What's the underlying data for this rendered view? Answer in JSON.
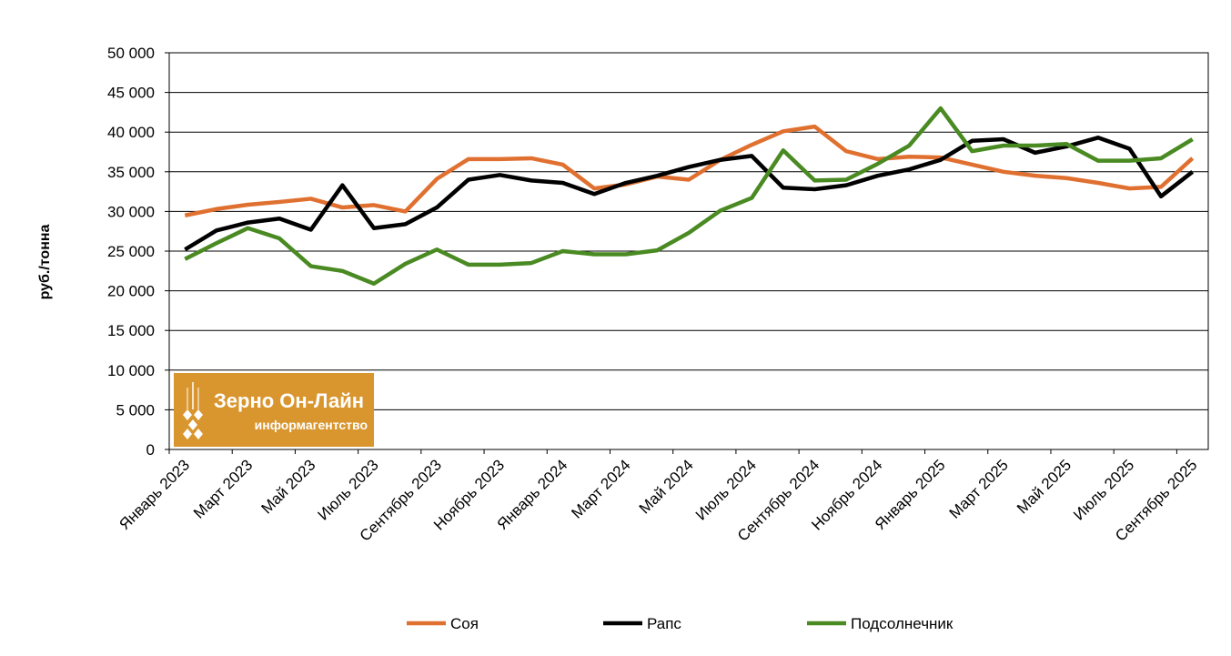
{
  "chart_data": {
    "type": "line",
    "ylabel": "руб./тонна",
    "ylim": [
      0,
      50000
    ],
    "yticks": [
      "0",
      "5 000",
      "10 000",
      "15 000",
      "20 000",
      "25 000",
      "30 000",
      "35 000",
      "40 000",
      "45 000",
      "50 000"
    ],
    "ytick_values": [
      0,
      5000,
      10000,
      15000,
      20000,
      25000,
      30000,
      35000,
      40000,
      45000,
      50000
    ],
    "grid": true,
    "legend": "bottom",
    "categories": [
      "Январь 2023",
      "Февраль 2023",
      "Март 2023",
      "Апрель 2023",
      "Май 2023",
      "Июнь 2023",
      "Июль 2023",
      "Август 2023",
      "Сентябрь 2023",
      "Октябрь 2023",
      "Ноябрь 2023",
      "Декабрь 2023",
      "Январь 2024",
      "Февраль 2024",
      "Март 2024",
      "Апрель 2024",
      "Май 2024",
      "Июнь 2024",
      "Июль 2024",
      "Август 2024",
      "Сентябрь 2024",
      "Октябрь 2024",
      "Ноябрь 2024",
      "Декабрь 2024",
      "Январь 2025",
      "Февраль 2025",
      "Март 2025",
      "Апрель 2025",
      "Май 2025",
      "Июнь 2025",
      "Июль 2025",
      "Август 2025",
      "Сентябрь 2025"
    ],
    "tick_labels": [
      "Январь 2023",
      "Март 2023",
      "Май 2023",
      "Июль 2023",
      "Сентябрь 2023",
      "Ноябрь 2023",
      "Январь 2024",
      "Март 2024",
      "Май 2024",
      "Июль 2024",
      "Сентябрь 2024",
      "Ноябрь 2024",
      "Январь 2025",
      "Март 2025",
      "Май 2025",
      "Июль 2025",
      "Сентябрь 2025"
    ],
    "series": [
      {
        "name": "Соя",
        "color": "#E07030",
        "values": [
          29500,
          30300,
          30850,
          31200,
          31600,
          30500,
          30800,
          30000,
          34100,
          36600,
          36600,
          36700,
          35900,
          32900,
          33400,
          34400,
          34000,
          36500,
          38400,
          40100,
          40700,
          37600,
          36600,
          36900,
          36800,
          35900,
          35000,
          34500,
          34200,
          33600,
          32900,
          33100,
          36700
        ]
      },
      {
        "name": "Рапс",
        "color": "#000000",
        "values": [
          25200,
          27600,
          28600,
          29100,
          27700,
          33300,
          27900,
          28400,
          30500,
          34000,
          34600,
          33900,
          33600,
          32200,
          33600,
          34500,
          35600,
          36500,
          37000,
          33000,
          32800,
          33300,
          34500,
          35300,
          36500,
          38900,
          39100,
          37400,
          38200,
          39300,
          37900,
          31900,
          35000
        ]
      },
      {
        "name": "Подсолнечник",
        "color": "#4A8A22",
        "values": [
          24000,
          26000,
          27900,
          26600,
          23100,
          22500,
          20900,
          23400,
          25200,
          23300,
          23300,
          23500,
          25000,
          24600,
          24600,
          25100,
          27300,
          30100,
          31700,
          37700,
          33900,
          34000,
          36000,
          38300,
          43000,
          37600,
          38300,
          38300,
          38500,
          36400,
          36400,
          36700,
          39100
        ]
      }
    ]
  },
  "logo": {
    "title": "Зерно Он-Лайн",
    "subtitle": "информагентство",
    "color": "#D9962F"
  }
}
